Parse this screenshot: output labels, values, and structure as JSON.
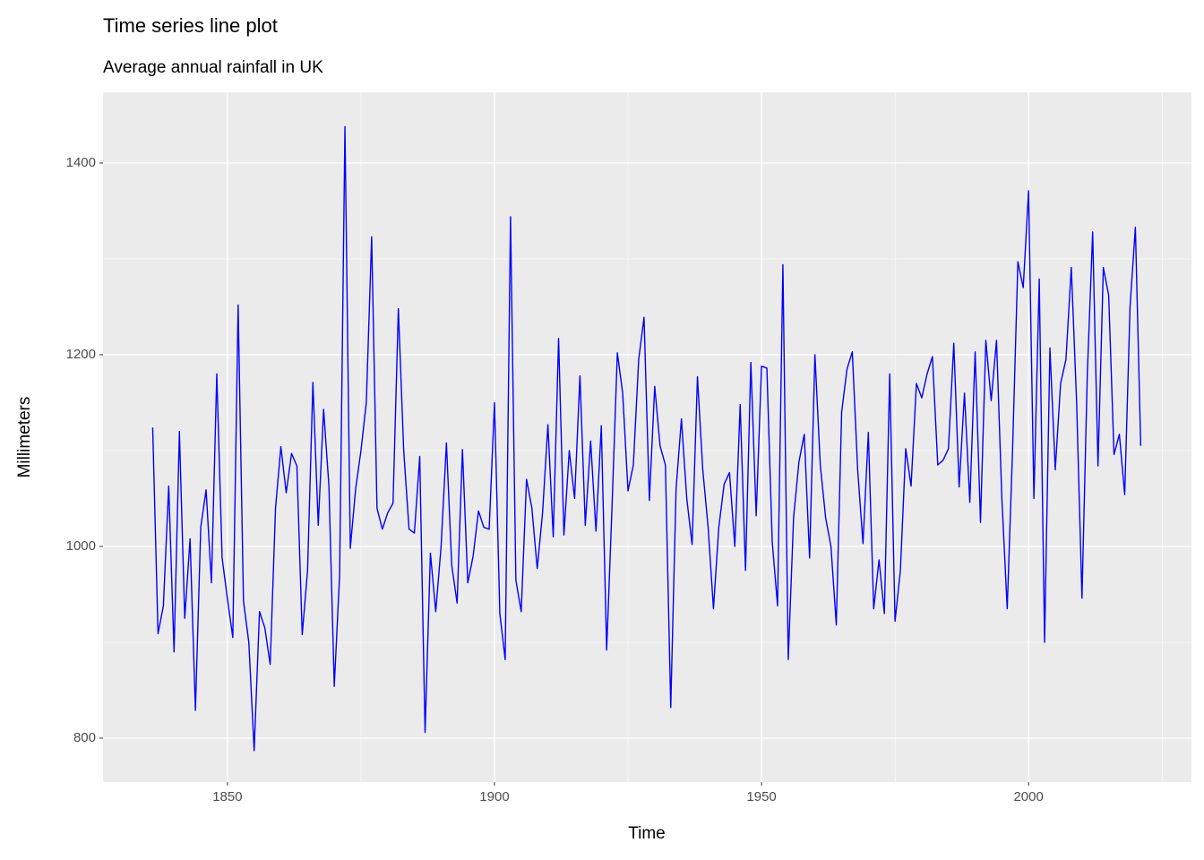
{
  "chart_data": {
    "type": "line",
    "title": "Time series line plot",
    "subtitle": "Average annual rainfall in UK",
    "x_label": "Time",
    "y_label": "Millimeters",
    "x": [
      1836,
      1837,
      1838,
      1839,
      1840,
      1841,
      1842,
      1843,
      1844,
      1845,
      1846,
      1847,
      1848,
      1849,
      1850,
      1851,
      1852,
      1853,
      1854,
      1855,
      1856,
      1857,
      1858,
      1859,
      1860,
      1861,
      1862,
      1863,
      1864,
      1865,
      1866,
      1867,
      1868,
      1869,
      1870,
      1871,
      1872,
      1873,
      1874,
      1875,
      1876,
      1877,
      1878,
      1879,
      1880,
      1881,
      1882,
      1883,
      1884,
      1885,
      1886,
      1887,
      1888,
      1889,
      1890,
      1891,
      1892,
      1893,
      1894,
      1895,
      1896,
      1897,
      1898,
      1899,
      1900,
      1901,
      1902,
      1903,
      1904,
      1905,
      1906,
      1907,
      1908,
      1909,
      1910,
      1911,
      1912,
      1913,
      1914,
      1915,
      1916,
      1917,
      1918,
      1919,
      1920,
      1921,
      1922,
      1923,
      1924,
      1925,
      1926,
      1927,
      1928,
      1929,
      1930,
      1931,
      1932,
      1933,
      1934,
      1935,
      1936,
      1937,
      1938,
      1939,
      1940,
      1941,
      1942,
      1943,
      1944,
      1945,
      1946,
      1947,
      1948,
      1949,
      1950,
      1951,
      1952,
      1953,
      1954,
      1955,
      1956,
      1957,
      1958,
      1959,
      1960,
      1961,
      1962,
      1963,
      1964,
      1965,
      1966,
      1967,
      1968,
      1969,
      1970,
      1971,
      1972,
      1973,
      1974,
      1975,
      1976,
      1977,
      1978,
      1979,
      1980,
      1981,
      1982,
      1983,
      1984,
      1985,
      1986,
      1987,
      1988,
      1989,
      1990,
      1991,
      1992,
      1993,
      1994,
      1995,
      1996,
      1997,
      1998,
      1999,
      2000,
      2001,
      2002,
      2003,
      2004,
      2005,
      2006,
      2007,
      2008,
      2009,
      2010,
      2011,
      2012,
      2013,
      2014,
      2015,
      2016,
      2017,
      2018,
      2019,
      2020,
      2021
    ],
    "series": [
      {
        "name": "Rainfall",
        "color": "#0000ff",
        "values": [
          1124,
          909,
          938,
          1063,
          890,
          1120,
          925,
          1008,
          829,
          1020,
          1059,
          962,
          1180,
          988,
          945,
          905,
          1252,
          943,
          900,
          787,
          932,
          915,
          877,
          1040,
          1104,
          1056,
          1097,
          1084,
          908,
          975,
          1171,
          1022,
          1143,
          1063,
          854,
          970,
          1438,
          998,
          1060,
          1100,
          1150,
          1323,
          1040,
          1018,
          1035,
          1045,
          1248,
          1100,
          1018,
          1014,
          1094,
          806,
          993,
          932,
          1000,
          1108,
          980,
          941,
          1101,
          962,
          990,
          1037,
          1020,
          1018,
          1150,
          930,
          882,
          1344,
          965,
          932,
          1070,
          1040,
          977,
          1035,
          1127,
          1010,
          1217,
          1012,
          1100,
          1050,
          1178,
          1022,
          1110,
          1016,
          1126,
          892,
          1040,
          1202,
          1160,
          1058,
          1085,
          1195,
          1239,
          1048,
          1167,
          1105,
          1085,
          832,
          1060,
          1133,
          1050,
          1002,
          1177,
          1080,
          1020,
          935,
          1020,
          1065,
          1077,
          1000,
          1148,
          975,
          1192,
          1032,
          1188,
          1186,
          1005,
          938,
          1294,
          882,
          1030,
          1088,
          1117,
          988,
          1200,
          1085,
          1030,
          1000,
          918,
          1140,
          1185,
          1203,
          1080,
          1003,
          1119,
          935,
          986,
          930,
          1180,
          922,
          975,
          1102,
          1063,
          1170,
          1155,
          1180,
          1198,
          1085,
          1090,
          1102,
          1212,
          1062,
          1160,
          1046,
          1203,
          1025,
          1215,
          1152,
          1215,
          1050,
          935,
          1100,
          1297,
          1270,
          1371,
          1050,
          1279,
          900,
          1207,
          1080,
          1170,
          1195,
          1291,
          1150,
          946,
          1180,
          1328,
          1084,
          1291,
          1262,
          1096,
          1117,
          1054,
          1250,
          1333,
          1105
        ]
      }
    ],
    "xlim": [
      1826.7,
      2030.5
    ],
    "ylim": [
      754.2,
      1473.8
    ],
    "xticks": [
      1850,
      1900,
      1950,
      2000
    ],
    "yticks": [
      800,
      1000,
      1200,
      1400
    ],
    "grid": true
  }
}
